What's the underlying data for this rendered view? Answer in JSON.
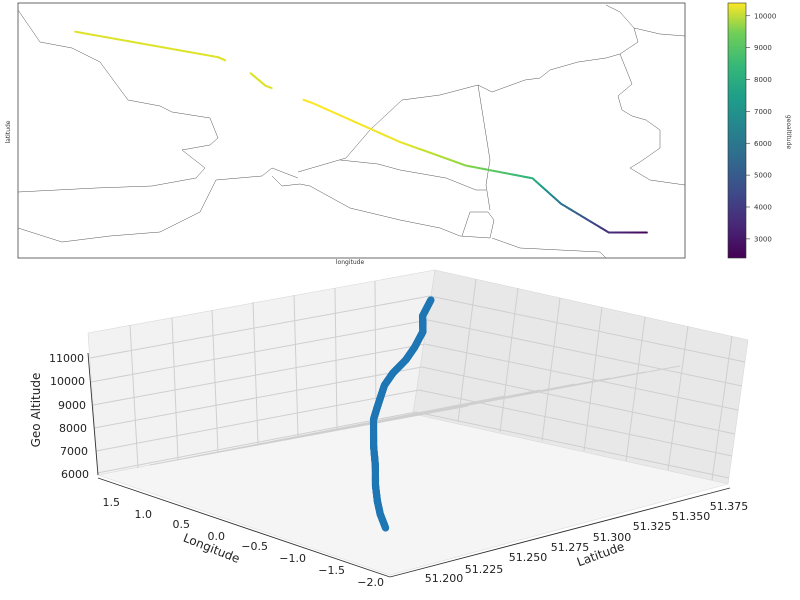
{
  "chart_data": [
    {
      "type": "scatter",
      "subtype": "map-track",
      "xlabel": "longitude",
      "ylabel": "latitude",
      "colorbar": {
        "label": "geoaltitude",
        "colormap": "viridis",
        "range": [
          2400,
          10400
        ],
        "ticks": [
          3000,
          4000,
          5000,
          6000,
          7000,
          8000,
          9000,
          10000
        ]
      },
      "track": {
        "x": [
          -29.0,
          -14.0,
          -11.0,
          -9.0,
          -4.0,
          5.0,
          12.0,
          19.0,
          22.0,
          27.0,
          31.0
        ],
        "y": [
          48.7,
          47.1,
          46.3,
          45.3,
          44.2,
          41.8,
          40.3,
          39.5,
          37.9,
          36.1,
          36.1
        ],
        "altitude": [
          10000,
          10000,
          10000,
          10000,
          10400,
          10200,
          9000,
          7500,
          5500,
          3500,
          2500
        ],
        "gaps": [
          [
            -13.3,
            -10.6
          ],
          [
            -8.4,
            -5.0
          ]
        ]
      }
    },
    {
      "type": "line3d",
      "xlabel": "Latitude",
      "ylabel": "Longitude",
      "zlabel": "Geo Altitude",
      "xlim": [
        51.2,
        51.38
      ],
      "ylim": [
        -2.0,
        1.6
      ],
      "zlim": [
        5600,
        11800
      ],
      "xticks": [
        "51.200",
        "51.225",
        "51.250",
        "51.275",
        "51.300",
        "51.325",
        "51.350",
        "51.375"
      ],
      "yticks": [
        "−2.0",
        "−1.5",
        "−1.0",
        "−0.5",
        "0.0",
        "0.5",
        "1.0",
        "1.5"
      ],
      "zticks": [
        "6000",
        "7000",
        "8000",
        "9000",
        "10000",
        "11000"
      ],
      "color": "#1f77b4",
      "series": {
        "lat": [
          51.22,
          51.24,
          51.26,
          51.275,
          51.285,
          51.295,
          51.305,
          51.315,
          51.322,
          51.327,
          51.33,
          51.333,
          51.337,
          51.343,
          51.352,
          51.36
        ],
        "lon": [
          1.4,
          0.9,
          0.5,
          0.1,
          -0.2,
          -0.55,
          -0.85,
          -1.1,
          -1.28,
          -1.42,
          -1.48,
          -1.52,
          -1.6,
          -1.7,
          -1.85,
          -1.95
        ],
        "alt": [
          11000,
          11000,
          10950,
          10800,
          10650,
          10500,
          10350,
          10150,
          9950,
          9650,
          8600,
          7800,
          7100,
          6600,
          6300,
          5900
        ]
      }
    }
  ]
}
